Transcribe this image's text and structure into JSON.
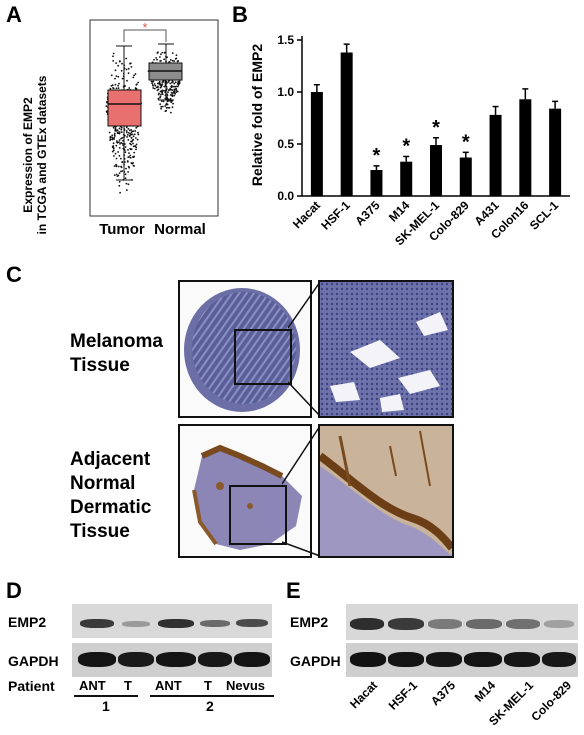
{
  "panels": {
    "a": "A",
    "b": "B",
    "c": "C",
    "d": "D",
    "e": "E"
  },
  "panel_a": {
    "ylabel_line1": "Expression of EMP2",
    "ylabel_line2": "in TCGA and GTEx datasets",
    "groups": [
      "Tumor",
      "Normal"
    ],
    "significance": "*",
    "colors": {
      "tumor": "#e8716f",
      "normal": "#8c8c8c",
      "sig": "#e05a4a"
    }
  },
  "chart_data": {
    "type": "bar",
    "categories": [
      "Hacat",
      "HSF-1",
      "A375",
      "M14",
      "SK-MEL-1",
      "Colo-829",
      "A431",
      "Colon16",
      "SCL-1"
    ],
    "values": [
      1.0,
      1.38,
      0.25,
      0.33,
      0.49,
      0.37,
      0.78,
      0.93,
      0.84
    ],
    "errors": [
      0.07,
      0.08,
      0.04,
      0.05,
      0.07,
      0.05,
      0.08,
      0.1,
      0.07
    ],
    "significant": [
      false,
      false,
      true,
      true,
      true,
      true,
      false,
      false,
      false
    ],
    "significance_mark": "*",
    "title": "",
    "xlabel": "",
    "ylabel": "Relative fold of EMP2",
    "ylim": [
      0,
      1.5
    ],
    "yticks": [
      "0.0",
      "0.5",
      "1.0",
      "1.5"
    ],
    "grid": false,
    "bar_color": "#000000"
  },
  "panel_c": {
    "row1_label": [
      "Melanoma",
      "Tissue"
    ],
    "row2_label": [
      "Adjacent",
      "Normal",
      "Dermatic",
      "Tissue"
    ]
  },
  "panel_d": {
    "rows": [
      "EMP2",
      "GAPDH"
    ],
    "patient_label": "Patient",
    "lanes": [
      "ANT",
      "T",
      "ANT",
      "T",
      "Nevus"
    ],
    "groups": [
      "1",
      "2"
    ]
  },
  "panel_e": {
    "rows": [
      "EMP2",
      "GAPDH"
    ],
    "lanes": [
      "Hacat",
      "HSF-1",
      "A375",
      "M14",
      "SK-MEL-1",
      "Colo-829"
    ]
  }
}
